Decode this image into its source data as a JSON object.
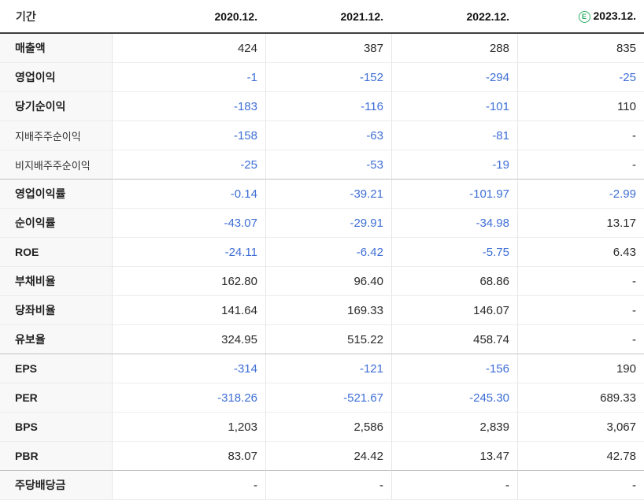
{
  "colors": {
    "negative_value": "#3e6ed6",
    "estimate_green": "#2fae62"
  },
  "chart_data": {
    "type": "table",
    "header": {
      "period_label": "기간",
      "periods": [
        "2020.12.",
        "2021.12.",
        "2022.12.",
        "2023.12."
      ],
      "estimate_badge": "E",
      "estimate_period_index": 3
    },
    "rows": [
      {
        "label": "매출액",
        "sub": false,
        "group_start": false,
        "values": [
          "424",
          "387",
          "288",
          "835"
        ]
      },
      {
        "label": "영업이익",
        "sub": false,
        "group_start": false,
        "values": [
          "-1",
          "-152",
          "-294",
          "-25"
        ]
      },
      {
        "label": "당기순이익",
        "sub": false,
        "group_start": false,
        "values": [
          "-183",
          "-116",
          "-101",
          "110"
        ]
      },
      {
        "label": "지배주주순이익",
        "sub": true,
        "group_start": false,
        "values": [
          "-158",
          "-63",
          "-81",
          "-"
        ]
      },
      {
        "label": "비지배주주순이익",
        "sub": true,
        "group_start": false,
        "values": [
          "-25",
          "-53",
          "-19",
          "-"
        ]
      },
      {
        "label": "영업이익률",
        "sub": false,
        "group_start": true,
        "values": [
          "-0.14",
          "-39.21",
          "-101.97",
          "-2.99"
        ]
      },
      {
        "label": "순이익률",
        "sub": false,
        "group_start": false,
        "values": [
          "-43.07",
          "-29.91",
          "-34.98",
          "13.17"
        ]
      },
      {
        "label": "ROE",
        "sub": false,
        "group_start": false,
        "values": [
          "-24.11",
          "-6.42",
          "-5.75",
          "6.43"
        ]
      },
      {
        "label": "부채비율",
        "sub": false,
        "group_start": false,
        "values": [
          "162.80",
          "96.40",
          "68.86",
          "-"
        ]
      },
      {
        "label": "당좌비율",
        "sub": false,
        "group_start": false,
        "values": [
          "141.64",
          "169.33",
          "146.07",
          "-"
        ]
      },
      {
        "label": "유보율",
        "sub": false,
        "group_start": false,
        "values": [
          "324.95",
          "515.22",
          "458.74",
          "-"
        ]
      },
      {
        "label": "EPS",
        "sub": false,
        "group_start": true,
        "values": [
          "-314",
          "-121",
          "-156",
          "190"
        ]
      },
      {
        "label": "PER",
        "sub": false,
        "group_start": false,
        "values": [
          "-318.26",
          "-521.67",
          "-245.30",
          "689.33"
        ]
      },
      {
        "label": "BPS",
        "sub": false,
        "group_start": false,
        "values": [
          "1,203",
          "2,586",
          "2,839",
          "3,067"
        ]
      },
      {
        "label": "PBR",
        "sub": false,
        "group_start": false,
        "values": [
          "83.07",
          "24.42",
          "13.47",
          "42.78"
        ]
      },
      {
        "label": "주당배당금",
        "sub": false,
        "group_start": true,
        "values": [
          "-",
          "-",
          "-",
          "-"
        ]
      }
    ]
  }
}
